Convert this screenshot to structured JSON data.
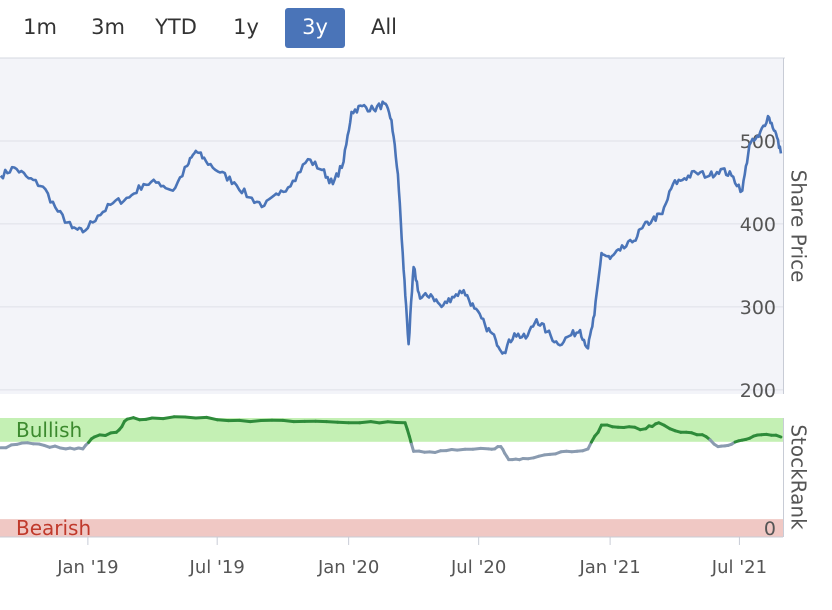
{
  "range_selector": {
    "buttons": [
      {
        "label": "1m"
      },
      {
        "label": "3m"
      },
      {
        "label": "YTD"
      },
      {
        "label": "1y"
      },
      {
        "label": "3y"
      },
      {
        "label": "All"
      }
    ],
    "active": "3y"
  },
  "colors": {
    "price_line": "#4a74b8",
    "price_area": "#f3f4f9",
    "bullish_zone": "#c4f0b4",
    "bearish_zone": "#f0c8c4",
    "bullish_text": "#3c8a2e",
    "bearish_text": "#c0392b",
    "rank_green": "#2e8b3a",
    "rank_grey": "#8a9bb0",
    "active_button": "#4a74b8"
  },
  "chart_data": [
    {
      "type": "line",
      "title": "",
      "ylabel": "Share Price",
      "y_ticks": [
        "200",
        "300",
        "400",
        "500"
      ],
      "ylim": [
        195,
        600
      ],
      "x_tick_labels": [
        "Jan '19",
        "Jul '19",
        "Jan '20",
        "Jul '20",
        "Jan '21",
        "Jul '21"
      ],
      "xlim": [
        "2018-08-31",
        "2021-08-31"
      ],
      "series": [
        {
          "name": "Share Price",
          "points": [
            [
              "2018-09-01",
              458
            ],
            [
              "2018-09-20",
              468
            ],
            [
              "2018-10-10",
              455
            ],
            [
              "2018-10-30",
              445
            ],
            [
              "2018-11-20",
              415
            ],
            [
              "2018-12-10",
              395
            ],
            [
              "2018-12-25",
              390
            ],
            [
              "2019-01-15",
              410
            ],
            [
              "2019-02-05",
              425
            ],
            [
              "2019-02-28",
              432
            ],
            [
              "2019-03-20",
              448
            ],
            [
              "2019-04-10",
              450
            ],
            [
              "2019-04-30",
              440
            ],
            [
              "2019-05-20",
              470
            ],
            [
              "2019-06-01",
              488
            ],
            [
              "2019-06-15",
              476
            ],
            [
              "2019-07-05",
              462
            ],
            [
              "2019-07-25",
              450
            ],
            [
              "2019-08-15",
              432
            ],
            [
              "2019-09-05",
              422
            ],
            [
              "2019-09-25",
              435
            ],
            [
              "2019-10-15",
              452
            ],
            [
              "2019-11-05",
              478
            ],
            [
              "2019-11-25",
              465
            ],
            [
              "2019-12-10",
              448
            ],
            [
              "2019-12-25",
              475
            ],
            [
              "2020-01-05",
              535
            ],
            [
              "2020-01-20",
              542
            ],
            [
              "2020-02-05",
              538
            ],
            [
              "2020-02-20",
              545
            ],
            [
              "2020-03-01",
              525
            ],
            [
              "2020-03-10",
              460
            ],
            [
              "2020-03-18",
              345
            ],
            [
              "2020-03-25",
              255
            ],
            [
              "2020-04-01",
              348
            ],
            [
              "2020-04-10",
              310
            ],
            [
              "2020-04-25",
              315
            ],
            [
              "2020-05-10",
              300
            ],
            [
              "2020-05-25",
              312
            ],
            [
              "2020-06-10",
              320
            ],
            [
              "2020-06-25",
              298
            ],
            [
              "2020-07-10",
              278
            ],
            [
              "2020-07-25",
              260
            ],
            [
              "2020-08-05",
              245
            ],
            [
              "2020-08-20",
              268
            ],
            [
              "2020-09-05",
              262
            ],
            [
              "2020-09-20",
              285
            ],
            [
              "2020-10-05",
              270
            ],
            [
              "2020-10-20",
              255
            ],
            [
              "2020-11-05",
              265
            ],
            [
              "2020-11-20",
              272
            ],
            [
              "2020-12-01",
              250
            ],
            [
              "2020-12-10",
              290
            ],
            [
              "2020-12-20",
              365
            ],
            [
              "2021-01-01",
              358
            ],
            [
              "2021-01-15",
              368
            ],
            [
              "2021-02-01",
              378
            ],
            [
              "2021-02-15",
              395
            ],
            [
              "2021-03-01",
              405
            ],
            [
              "2021-03-15",
              412
            ],
            [
              "2021-03-30",
              448
            ],
            [
              "2021-04-15",
              455
            ],
            [
              "2021-05-01",
              462
            ],
            [
              "2021-05-20",
              458
            ],
            [
              "2021-06-05",
              466
            ],
            [
              "2021-06-20",
              458
            ],
            [
              "2021-07-05",
              440
            ],
            [
              "2021-07-15",
              495
            ],
            [
              "2021-07-28",
              505
            ],
            [
              "2021-08-10",
              530
            ],
            [
              "2021-08-20",
              512
            ],
            [
              "2021-08-28",
              485
            ]
          ]
        }
      ]
    },
    {
      "type": "line",
      "title": "",
      "ylabel": "StockRank",
      "y_ticks": [
        "0"
      ],
      "ylim": [
        0,
        100
      ],
      "zones": [
        {
          "label": "Bullish",
          "from": 80,
          "to": 100
        },
        {
          "label": "Bearish",
          "from": 0,
          "to": 15
        }
      ],
      "series": [
        {
          "name": "StockRank",
          "points": [
            [
              "2018-09-01",
              75
            ],
            [
              "2018-10-01",
              79
            ],
            [
              "2018-11-01",
              77
            ],
            [
              "2018-12-01",
              74
            ],
            [
              "2018-12-25",
              74
            ],
            [
              "2019-01-10",
              84
            ],
            [
              "2019-02-10",
              88
            ],
            [
              "2019-02-25",
              99
            ],
            [
              "2019-04-01",
              100
            ],
            [
              "2019-06-01",
              100
            ],
            [
              "2019-08-01",
              98
            ],
            [
              "2019-10-01",
              98
            ],
            [
              "2019-12-01",
              97
            ],
            [
              "2020-02-01",
              97
            ],
            [
              "2020-03-20",
              96
            ],
            [
              "2020-04-01",
              72
            ],
            [
              "2020-05-01",
              71
            ],
            [
              "2020-06-01",
              73
            ],
            [
              "2020-07-15",
              74
            ],
            [
              "2020-08-01",
              76
            ],
            [
              "2020-08-12",
              65
            ],
            [
              "2020-09-01",
              66
            ],
            [
              "2020-10-01",
              69
            ],
            [
              "2020-11-01",
              72
            ],
            [
              "2020-12-01",
              74
            ],
            [
              "2020-12-20",
              94
            ],
            [
              "2021-01-20",
              92
            ],
            [
              "2021-02-20",
              91
            ],
            [
              "2021-03-10",
              96
            ],
            [
              "2021-04-10",
              88
            ],
            [
              "2021-05-10",
              86
            ],
            [
              "2021-06-01",
              76
            ],
            [
              "2021-06-20",
              78
            ],
            [
              "2021-07-10",
              82
            ],
            [
              "2021-08-01",
              86
            ],
            [
              "2021-08-28",
              84
            ]
          ]
        }
      ]
    }
  ]
}
